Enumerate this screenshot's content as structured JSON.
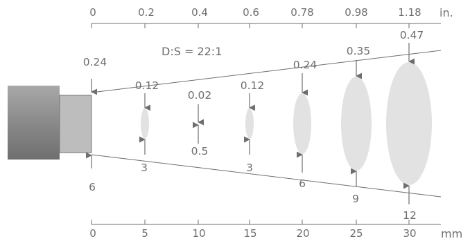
{
  "ratio_label": "D:S = 22:1",
  "top_axis": {
    "unit": "in.",
    "ticks": [
      "0",
      "0.2",
      "0.4",
      "0.6",
      "0.78",
      "0.98",
      "1.18"
    ]
  },
  "bottom_axis": {
    "unit": "mm",
    "ticks": [
      "0",
      "5",
      "10",
      "15",
      "20",
      "25",
      "30"
    ]
  },
  "spot_sizes_in": [
    "0.24",
    "0.12",
    "0.02",
    "0.12",
    "0.24",
    "0.35",
    "0.47"
  ],
  "spot_sizes_mm": [
    "6",
    "3",
    "0.5",
    "3",
    "6",
    "9",
    "12"
  ],
  "colors": {
    "sensor_body": "#8f8f8f",
    "sensor_lens": "#bdbdbd",
    "spot_fill": "#e2e2e2",
    "line": "#6e6e6e",
    "text": "#6e6e6e"
  }
}
